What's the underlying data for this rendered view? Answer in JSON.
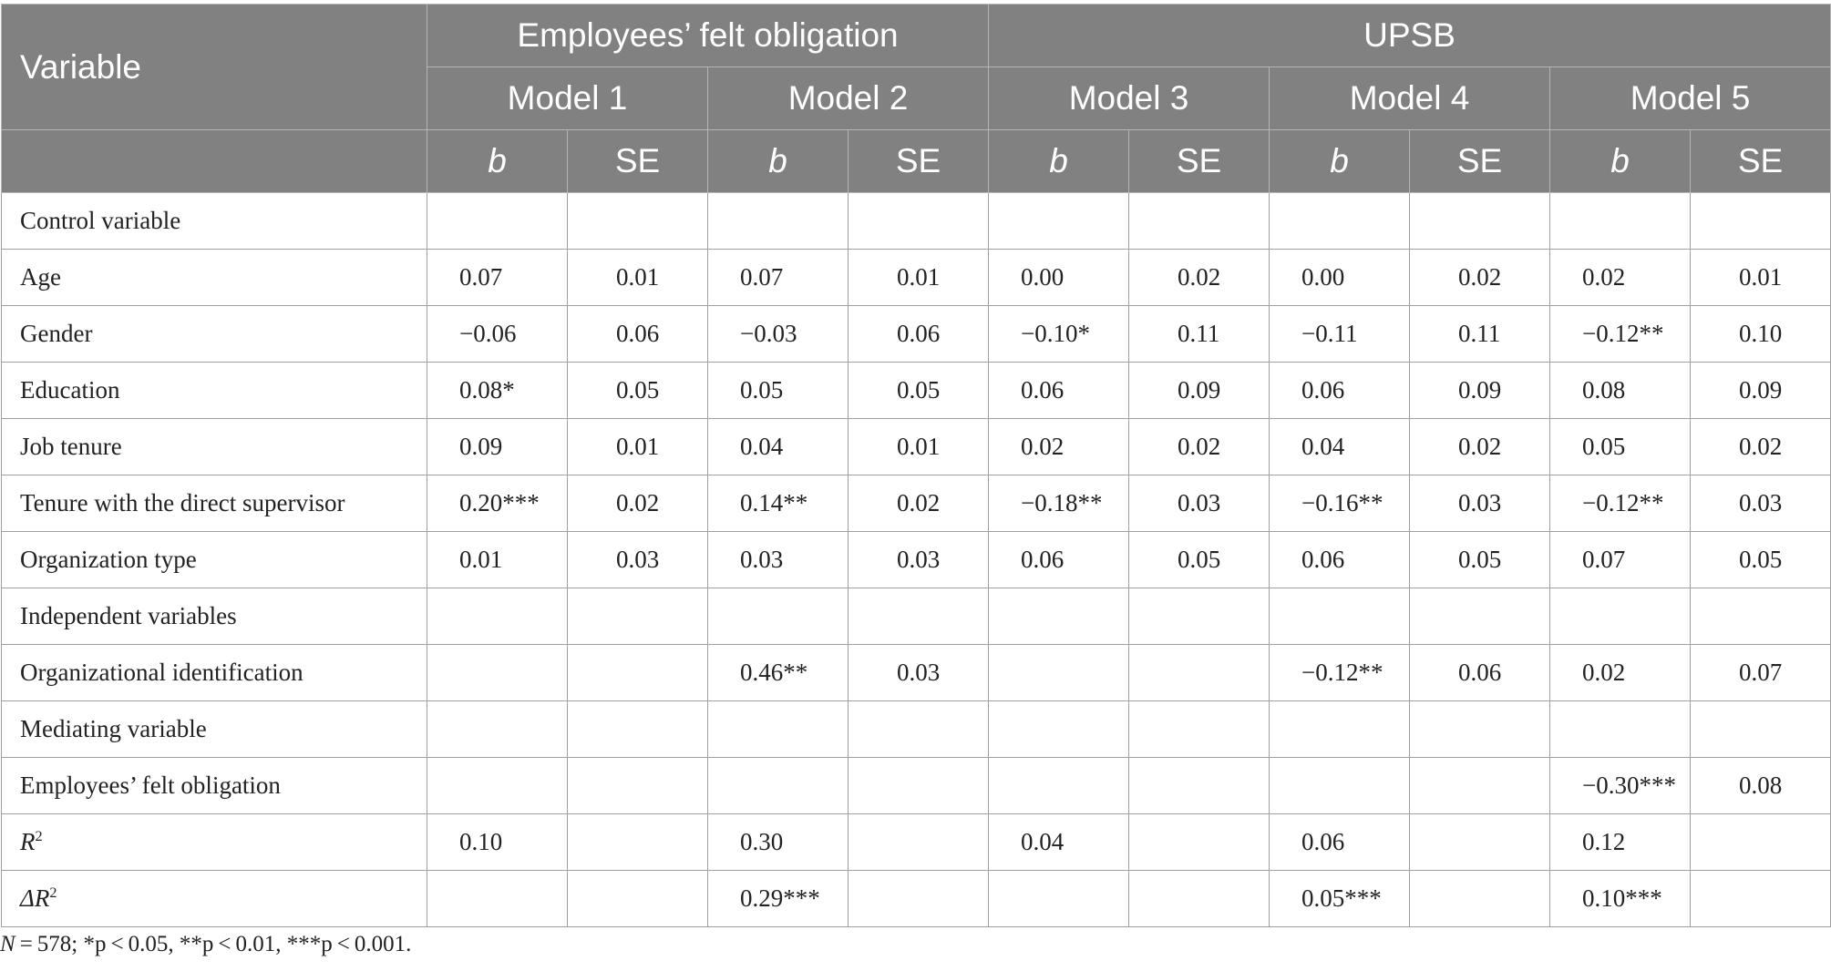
{
  "header": {
    "variable": "Variable",
    "group1": "Employees’ felt obligation",
    "group2": "UPSB",
    "models": [
      "Model 1",
      "Model 2",
      "Model 3",
      "Model 4",
      "Model 5"
    ],
    "b_label": "b",
    "se_label": "SE"
  },
  "rows": [
    {
      "label": "Control variable",
      "cells": [
        "",
        "",
        "",
        "",
        "",
        "",
        "",
        "",
        "",
        ""
      ]
    },
    {
      "label": "Age",
      "cells": [
        "0.07",
        "0.01",
        "0.07",
        "0.01",
        "0.00",
        "0.02",
        "0.00",
        "0.02",
        "0.02",
        "0.01"
      ]
    },
    {
      "label": "Gender",
      "cells": [
        "−0.06",
        "0.06",
        "−0.03",
        "0.06",
        "−0.10*",
        "0.11",
        "−0.11",
        "0.11",
        "−0.12**",
        "0.10"
      ]
    },
    {
      "label": "Education",
      "cells": [
        "0.08*",
        "0.05",
        "0.05",
        "0.05",
        "0.06",
        "0.09",
        "0.06",
        "0.09",
        "0.08",
        "0.09"
      ]
    },
    {
      "label": "Job tenure",
      "cells": [
        "0.09",
        "0.01",
        "0.04",
        "0.01",
        "0.02",
        "0.02",
        "0.04",
        "0.02",
        "0.05",
        "0.02"
      ]
    },
    {
      "label": "Tenure with the direct supervisor",
      "cells": [
        "0.20***",
        "0.02",
        "0.14**",
        "0.02",
        "−0.18**",
        "0.03",
        "−0.16**",
        "0.03",
        "−0.12**",
        "0.03"
      ]
    },
    {
      "label": "Organization type",
      "cells": [
        "0.01",
        "0.03",
        "0.03",
        "0.03",
        "0.06",
        "0.05",
        "0.06",
        "0.05",
        "0.07",
        "0.05"
      ]
    },
    {
      "label": "Independent variables",
      "cells": [
        "",
        "",
        "",
        "",
        "",
        "",
        "",
        "",
        "",
        ""
      ]
    },
    {
      "label": "Organizational identification",
      "cells": [
        "",
        "",
        "0.46**",
        "0.03",
        "",
        "",
        "−0.12**",
        "0.06",
        "0.02",
        "0.07"
      ]
    },
    {
      "label": "Mediating variable",
      "cells": [
        "",
        "",
        "",
        "",
        "",
        "",
        "",
        "",
        "",
        ""
      ]
    },
    {
      "label": "Employees’ felt obligation",
      "cells": [
        "",
        "",
        "",
        "",
        "",
        "",
        "",
        "",
        "−0.30***",
        "0.08"
      ]
    },
    {
      "label": "R",
      "sup": "2",
      "cells": [
        "0.10",
        "",
        "0.30",
        "",
        "0.04",
        "",
        "0.06",
        "",
        "0.12",
        ""
      ]
    },
    {
      "label": "ΔR",
      "sup": "2",
      "cells": [
        "",
        "",
        "0.29***",
        "",
        "",
        "",
        "0.05***",
        "",
        "0.10***",
        ""
      ]
    }
  ],
  "note": {
    "n_label": "N",
    "text": " = 578; *p < 0.05, **p < 0.01, ***p < 0.001."
  }
}
